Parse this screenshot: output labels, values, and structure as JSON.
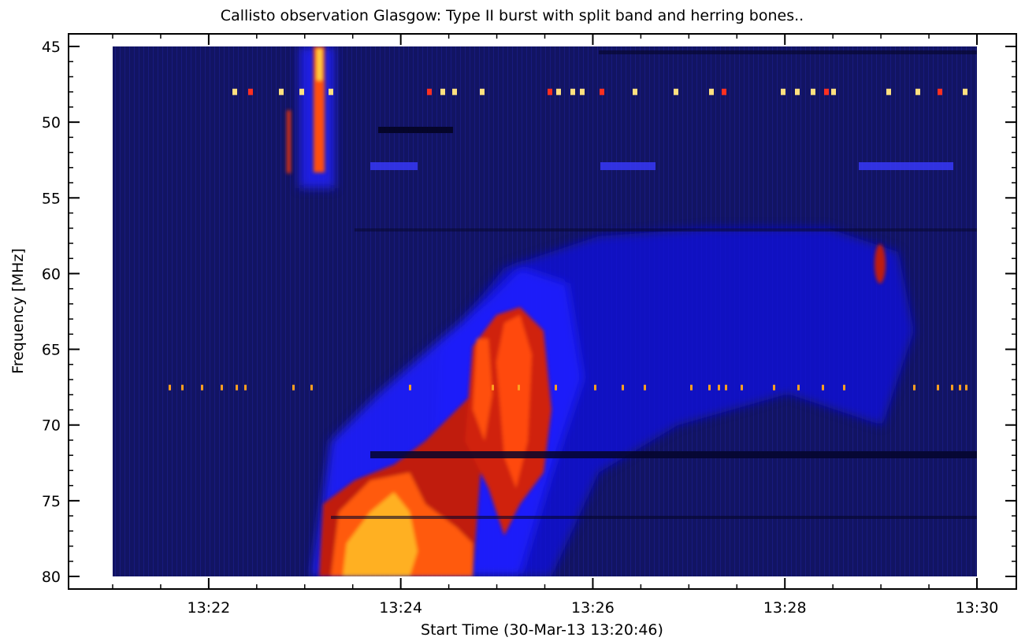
{
  "chart_data": {
    "type": "heatmap",
    "title": "Callisto observation Glasgow: Type II burst with split band and herring bones..",
    "xlabel": "Start Time (30-Mar-13 13:20:46)",
    "ylabel": "Frequency [MHz]",
    "x_ticks": [
      "13:22",
      "13:24",
      "13:26",
      "13:28",
      "13:30"
    ],
    "y_ticks": [
      "45",
      "50",
      "55",
      "60",
      "65",
      "70",
      "75",
      "80"
    ],
    "x_range": [
      "13:21:00",
      "13:30:00"
    ],
    "ylim": [
      45,
      80
    ],
    "y_inverted": true,
    "colormap": [
      "#000000",
      "#1a1ab0",
      "#1010ff",
      "#b01010",
      "#ff3000",
      "#ffb000",
      "#ffff80"
    ],
    "background_color": "#101060",
    "features": [
      {
        "name": "type III burst",
        "time": "13:23:05",
        "freq_range": [
          45,
          54
        ]
      },
      {
        "name": "type II lower band",
        "time_range": [
          "13:23:30",
          "13:25:00"
        ],
        "freq_range": [
          66,
          80
        ]
      },
      {
        "name": "type II upper band",
        "time_range": [
          "13:24:40",
          "13:25:40"
        ],
        "freq_range": [
          62,
          76
        ]
      },
      {
        "name": "herring bones",
        "time_range": [
          "13:24:00",
          "13:29:30"
        ],
        "freq_range": [
          58,
          70
        ]
      }
    ]
  }
}
